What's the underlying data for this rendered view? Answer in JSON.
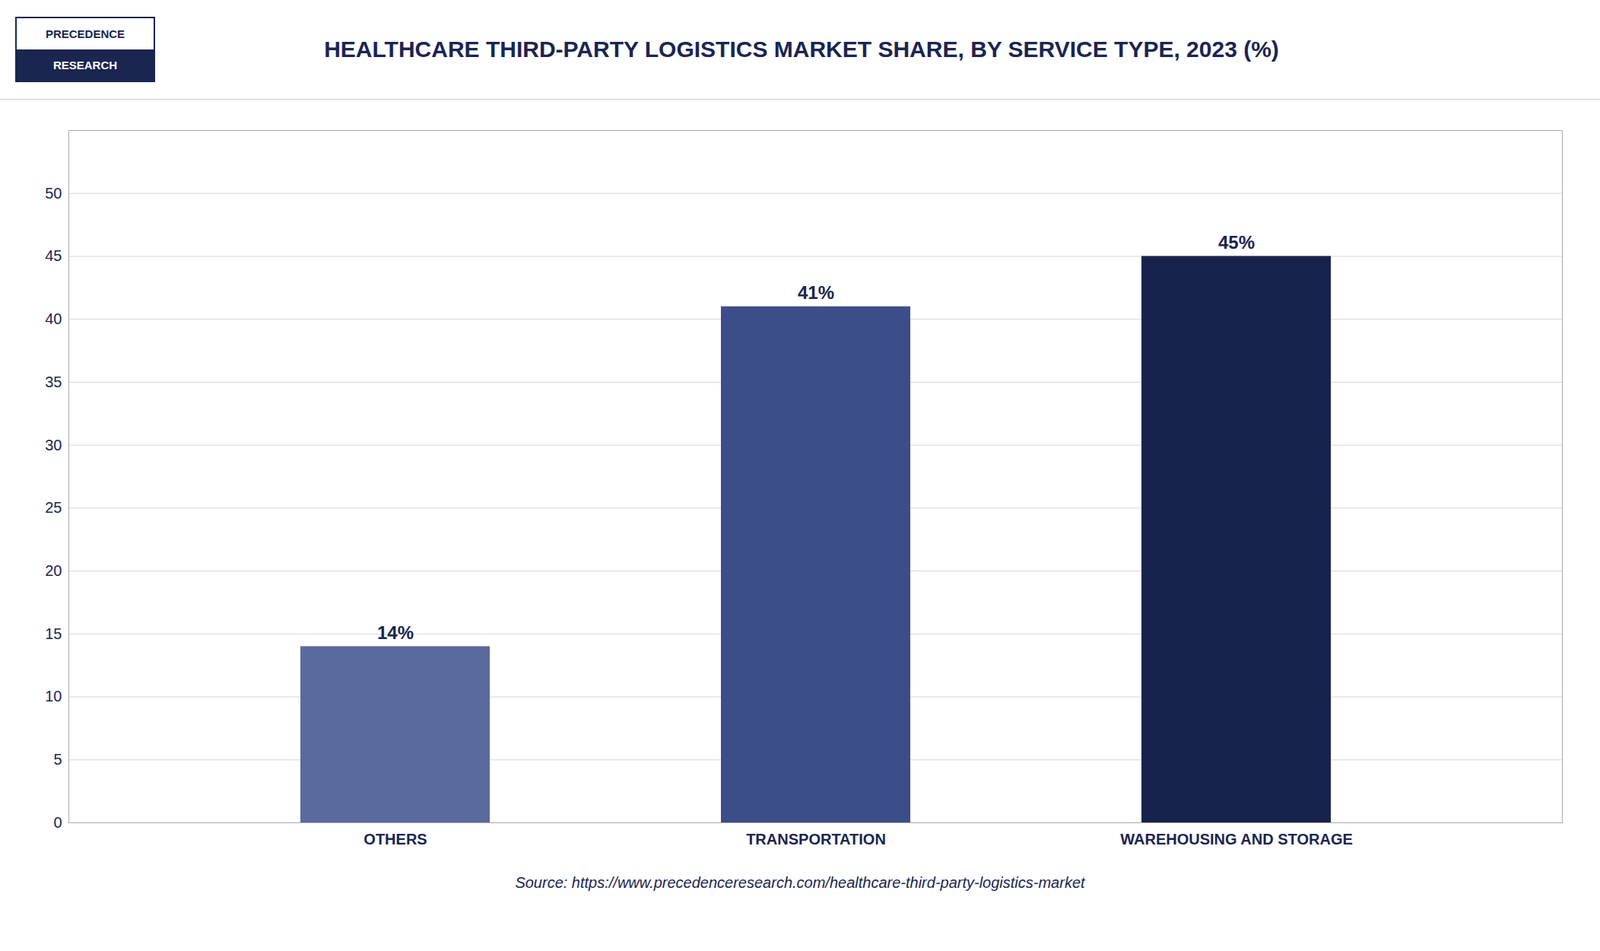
{
  "chart_data": {
    "type": "bar",
    "title": "HEALTHCARE THIRD-PARTY LOGISTICS MARKET SHARE, BY SERVICE TYPE, 2023 (%)",
    "categories": [
      "OTHERS",
      "TRANSPORTATION",
      "WAREHOUSING AND STORAGE"
    ],
    "values": [
      14,
      41,
      45
    ],
    "value_labels": [
      "14%",
      "41%",
      "45%"
    ],
    "colors": [
      "#5a6a9e",
      "#3b4e8a",
      "#18234d"
    ],
    "ylim": [
      0,
      55
    ],
    "yticks": [
      0,
      5,
      10,
      15,
      20,
      25,
      30,
      35,
      40,
      45,
      50
    ],
    "grid": true,
    "data_labels": true,
    "source": "Source: https://www.precedenceresearch.com/healthcare-third-party-logistics-market",
    "annotations": [
      "PRECEDENCE",
      "RESEARCH"
    ]
  }
}
